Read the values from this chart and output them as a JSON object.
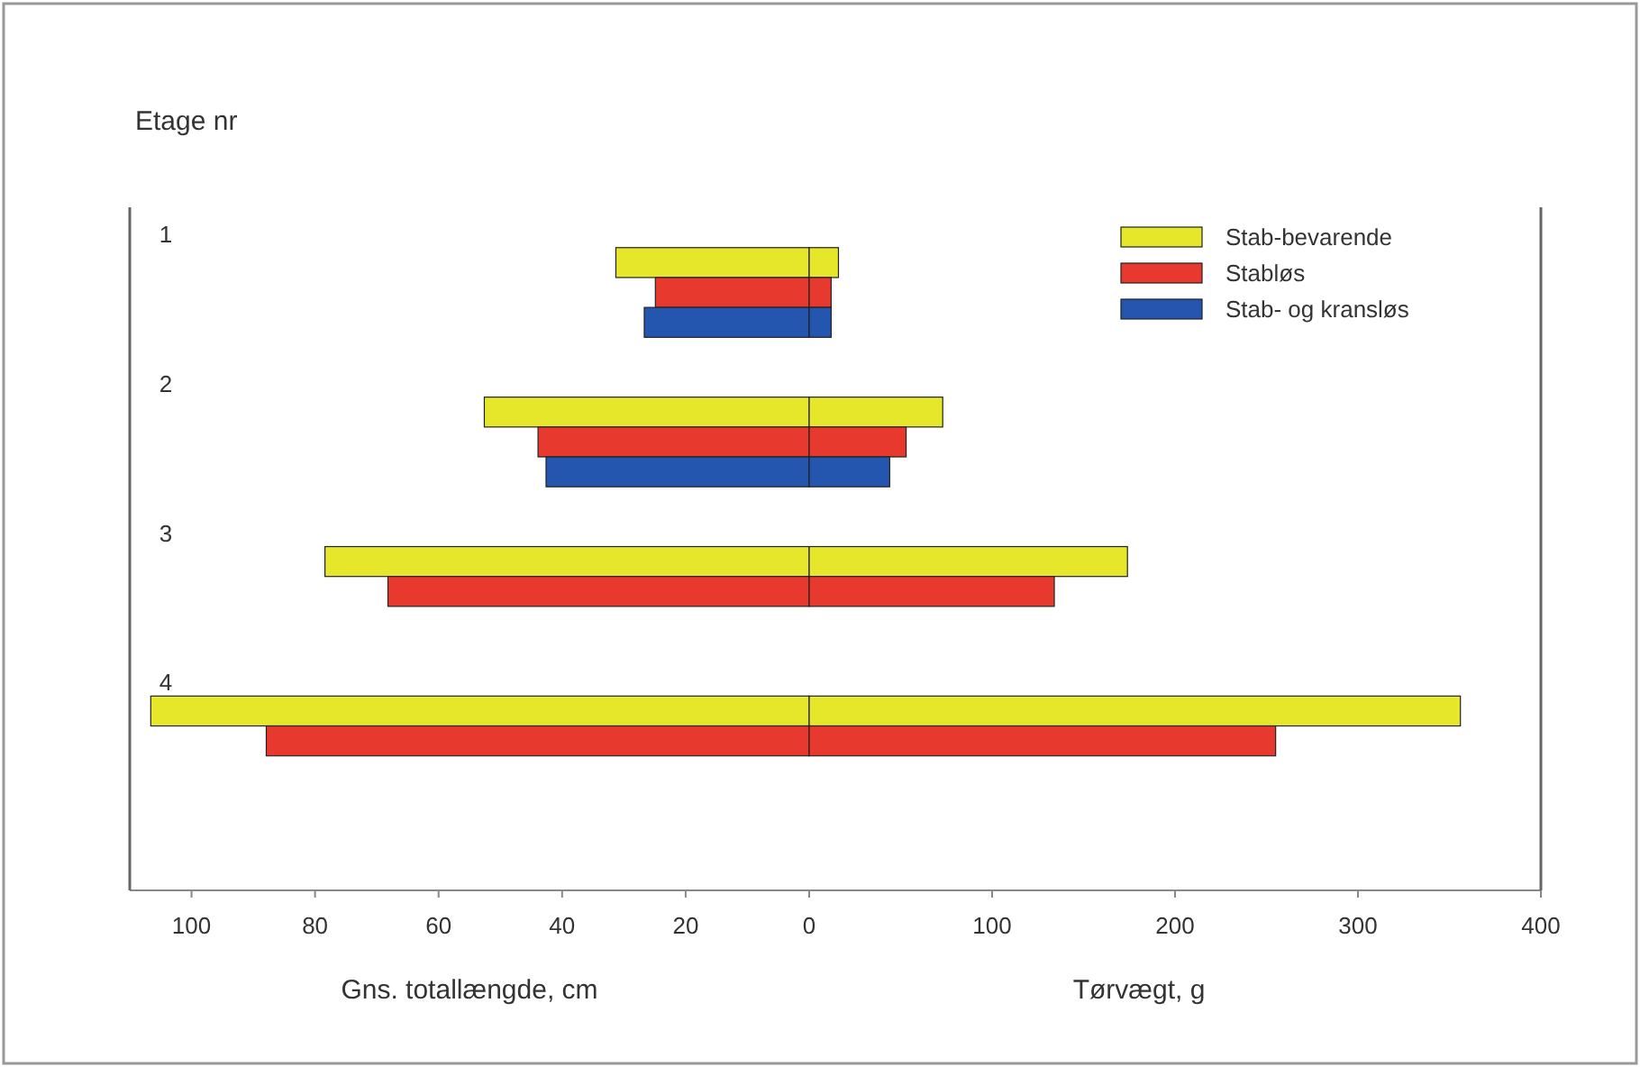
{
  "chart_data": [
    {
      "type": "bar",
      "orientation": "horizontal",
      "ylabel": "Etage nr",
      "xlabel": "Gns. totallængde, cm",
      "categories": [
        "1",
        "2",
        "3",
        "4"
      ],
      "xlim": [
        110,
        0
      ],
      "xticks": [
        100,
        80,
        60,
        40,
        20,
        0
      ],
      "series": [
        {
          "color": "#e6e62a",
          "values": [
            31.3,
            52.6,
            78.4,
            106.6
          ]
        },
        {
          "color": "#e8392e",
          "values": [
            24.9,
            43.9,
            68.2,
            87.9
          ]
        },
        {
          "color": "#2456b0",
          "values": [
            26.7,
            42.6,
            null,
            null
          ]
        }
      ]
    },
    {
      "type": "bar",
      "orientation": "horizontal",
      "xlabel": "Tørvægt, g",
      "categories": [
        null,
        null,
        null,
        null
      ],
      "xlim": [
        0,
        400
      ],
      "xticks": [
        100,
        200,
        300,
        400
      ],
      "tick_labels": "x",
      "legend": "top right",
      "series": [
        {
          "name": "Stab-bevarende",
          "color": "#e6e62a",
          "values": [
            16,
            73,
            174,
            356
          ]
        },
        {
          "name": "Stabløs",
          "color": "#e8392e",
          "values": [
            12,
            53,
            134,
            255
          ]
        },
        {
          "name": "Stab- og kransløs",
          "color": "#2456b0",
          "values": [
            12,
            44,
            null,
            null
          ]
        }
      ]
    }
  ]
}
